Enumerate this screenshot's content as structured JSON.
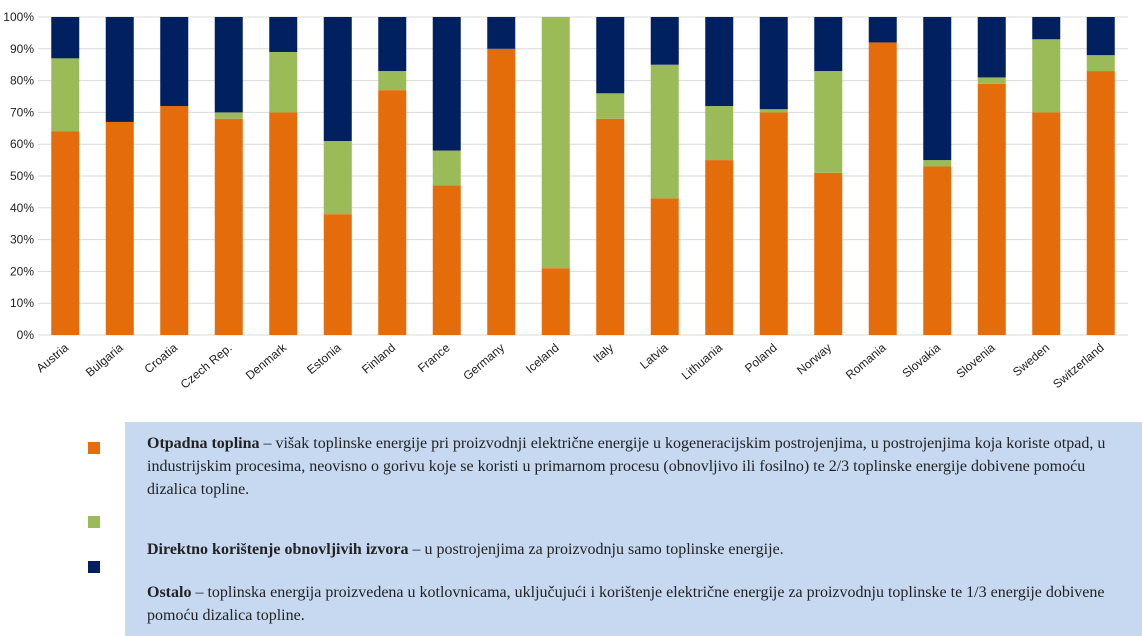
{
  "chart_data": {
    "type": "stacked_bar",
    "categories": [
      "Austria",
      "Bulgaria",
      "Croatia",
      "Czech Rep.",
      "Denmark",
      "Estonia",
      "Finland",
      "France",
      "Germany",
      "Iceland",
      "Italy",
      "Latvia",
      "Lithuania",
      "Poland",
      "Norway",
      "Romania",
      "Slovakia",
      "Slovenia",
      "Sweden",
      "Switzerland"
    ],
    "series": [
      {
        "name": "Otpadna toplina",
        "color": "#e46c0a",
        "description": "– višak toplinske energije pri proizvodnji električne energije u kogeneracijskim postrojenjima, u postrojenjima koja koriste otpad, u industrijskim procesima, neovisno o gorivu koje se koristi u primarnom procesu (obnovljivo ili fosilno) te 2/3 toplinske energije dobivene pomoću dizalica topline.",
        "values": [
          64,
          67,
          72,
          68,
          70,
          38,
          77,
          47,
          90,
          21,
          68,
          43,
          55,
          70,
          51,
          92,
          53,
          79,
          70,
          83
        ]
      },
      {
        "name": "Direktno korištenje obnovljivih izvora",
        "color": "#9bbb59",
        "description": "– u postrojenjima za proizvodnju samo toplinske energije.",
        "values": [
          23,
          0,
          0,
          2,
          19,
          23,
          6,
          11,
          0,
          79,
          8,
          42,
          17,
          1,
          32,
          0,
          2,
          2,
          23,
          5
        ]
      },
      {
        "name": "Ostalo",
        "color": "#002060",
        "description": "– toplinska energija proizvedena u kotlovnicama, uključujući i korištenje električne energije za proizvodnju toplinske te 1/3 energije dobivene pomoću dizalica topline.",
        "values": [
          13,
          33,
          28,
          30,
          11,
          39,
          17,
          42,
          10,
          0,
          24,
          15,
          28,
          29,
          17,
          8,
          45,
          19,
          7,
          12
        ]
      }
    ],
    "ylim": [
      0,
      100
    ],
    "yticks": [
      {
        "value": 0,
        "label": "0%"
      },
      {
        "value": 10,
        "label": "10%"
      },
      {
        "value": 20,
        "label": "20%"
      },
      {
        "value": 30,
        "label": "30%"
      },
      {
        "value": 40,
        "label": "40%"
      },
      {
        "value": 50,
        "label": "50%"
      },
      {
        "value": 60,
        "label": "60%"
      },
      {
        "value": 70,
        "label": "70%"
      },
      {
        "value": 80,
        "label": "80%"
      },
      {
        "value": 90,
        "label": "90%"
      },
      {
        "value": 100,
        "label": "100%"
      }
    ],
    "grid": true
  }
}
